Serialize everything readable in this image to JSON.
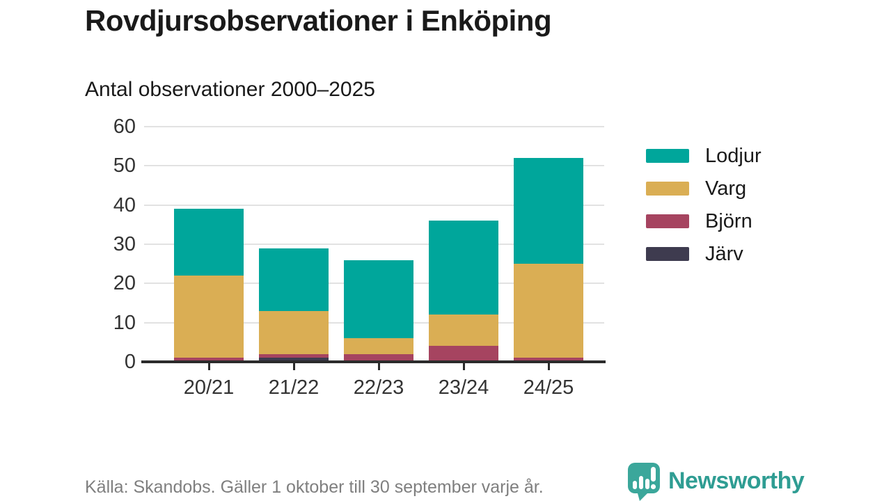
{
  "header": {
    "title": "Rovdjursobservationer i Enköping",
    "subtitle": "Antal observationer 2000–2025"
  },
  "chart_data": {
    "type": "bar",
    "stacked": true,
    "title": "Rovdjursobservationer i Enköping",
    "subtitle": "Antal observationer 2000–2025",
    "categories": [
      "20/21",
      "21/22",
      "22/23",
      "23/24",
      "24/25"
    ],
    "series": [
      {
        "name": "Järv",
        "color": "#3E3B4F",
        "values": [
          0,
          1,
          0,
          0,
          0
        ]
      },
      {
        "name": "Björn",
        "color": "#A64460",
        "values": [
          1,
          1,
          2,
          4,
          1
        ]
      },
      {
        "name": "Varg",
        "color": "#DAAE54",
        "values": [
          21,
          11,
          4,
          8,
          24
        ]
      },
      {
        "name": "Lodjur",
        "color": "#00A69B",
        "values": [
          17,
          16,
          20,
          24,
          27
        ]
      }
    ],
    "stack_order_bottom_to_top": [
      "Järv",
      "Björn",
      "Varg",
      "Lodjur"
    ],
    "totals": [
      39,
      29,
      26,
      36,
      52
    ],
    "ylim": [
      0,
      60
    ],
    "yticks": [
      0,
      10,
      20,
      30,
      40,
      50,
      60
    ],
    "grid": true,
    "legend_position": "right",
    "legend": [
      {
        "label": "Lodjur",
        "color": "#00A69B"
      },
      {
        "label": "Varg",
        "color": "#DAAE54"
      },
      {
        "label": "Björn",
        "color": "#A64460"
      },
      {
        "label": "Järv",
        "color": "#3E3B4F"
      }
    ]
  },
  "footer": {
    "source": "Källa: Skandobs. Gäller 1 oktober till 30 september varje år.",
    "brand": "Newsworthy",
    "brand_color": "#2F9D93",
    "brand_icon_color": "#3BA79B"
  },
  "colors": {
    "background": "#FFFFFF",
    "title_text": "#1A1A1A",
    "axis_text": "#333333",
    "gridline": "#E2E2E2",
    "axis_line": "#2B2B2B",
    "source_text": "#7F7F7F"
  }
}
